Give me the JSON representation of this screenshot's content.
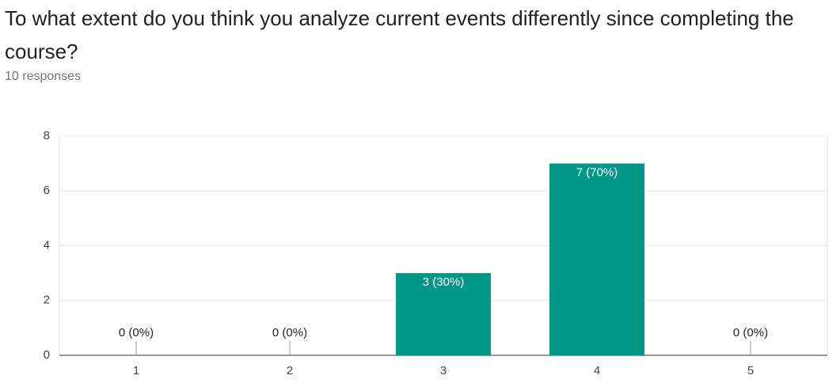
{
  "chart_data": {
    "type": "bar",
    "title": "To what extent do you think you analyze current events differently since completing the course?",
    "subtitle": "10 responses",
    "categories": [
      "1",
      "2",
      "3",
      "4",
      "5"
    ],
    "values": [
      0,
      0,
      3,
      7,
      0
    ],
    "value_labels": [
      "0 (0%)",
      "0 (0%)",
      "3 (30%)",
      "7 (70%)",
      "0 (0%)"
    ],
    "color": "#009688",
    "ylim": [
      0,
      8
    ],
    "yticks": [
      0,
      2,
      4,
      6,
      8
    ],
    "grid": true
  }
}
